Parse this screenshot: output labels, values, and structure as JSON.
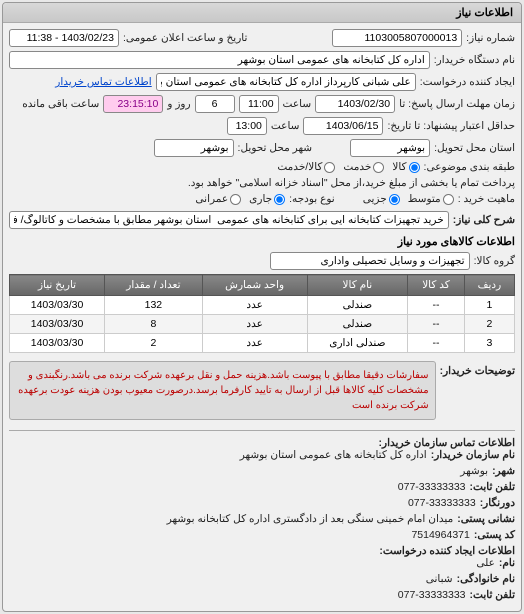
{
  "header": {
    "title": "اطلاعات نیاز"
  },
  "fields": {
    "need_no_label": "شماره نیاز:",
    "need_no": "1103005807000013",
    "datetime_label": "تاریخ و ساعت اعلان عمومی:",
    "datetime": "1403/02/23 - 11:38",
    "buyer_org_label": "نام دستگاه خریدار:",
    "buyer_org": "اداره کل کتابخانه های عمومی استان بوشهر",
    "requester_label": "ایجاد کننده درخواست:",
    "requester": "علی شبانی کارپرداز اداره کل کتابخانه های عمومی استان بوشهر",
    "contact_link": "اطلاعات تماس خریدار",
    "deadline_label": "زمان مهلت ارسال پاسخ: تا",
    "deadline_date": "1403/02/30",
    "deadline_time_label": "ساعت",
    "deadline_time": "11:00",
    "days_label": "روز و",
    "days": "6",
    "remain_time": "23:15:10",
    "remain_label": "ساعت باقی مانده",
    "valid_label": "حداقل اعتبار پیشنهاد: تا تاریخ:",
    "valid_date": "1403/06/15",
    "valid_time_label": "ساعت",
    "valid_time": "13:00",
    "loc_label": "استان محل تحویل:",
    "loc_province": "بوشهر",
    "city_label": "شهر محل تحویل:",
    "loc_city": "بوشهر",
    "budget_label": "طبقه بندی موضوعی:",
    "budget_type_label": "نوع بودجه:",
    "payment_label": "پرداخت تمام یا بخشی از مبلغ خرید،از محل \"اسناد خزانه اسلامی\" خواهد بود.",
    "nature_label": "ماهیت خرید :",
    "textarea_title": "شرح کلی نیاز:",
    "need_desc": "خرید تجهیزات کتابخانه ایی برای کتابخانه های عمومی  استان بوشهر مطابق با مشخصات و کاتالوگ/ فایل پیوست",
    "items_section": "اطلاعات کالاهای مورد نیاز",
    "group_label": "گروه کالا:",
    "group_value": "تجهیزات و وسایل تحصیلی واداری",
    "desc_label": "توضیحات خریدار:",
    "desc_text": "سفارشات دقیقا مطابق با پیوست باشد.هزینه حمل و نقل برعهده شرکت برنده می باشد.رنگبندی و مشخصات کلیه کالاها قبل از ارسال به تایید کارفرما برسد.درصورت معیوب بودن هزینه عودت برعهده شرکت برنده است",
    "footer_title": "اطلاعات تماس سازمان خریدار:",
    "f_org_label": "نام سازمان خریدار:",
    "f_org": "اداره کل کتابخانه های عمومی استان بوشهر",
    "f_city_label": "شهر:",
    "f_city": "بوشهر",
    "f_tel_label": "تلفن ثابت:",
    "f_tel": "077-33333333",
    "f_tel2_label": "دورنگار:",
    "f_tel2": "077-33333333",
    "f_postal_label": "نشانی پستی:",
    "f_postal": "میدان امام خمینی سنگی بعد از دادگستری اداره کل کتابخانه بوشهر",
    "f_zip_label": "کد پستی:",
    "f_zip": "7514964371",
    "f_creator_title": "اطلاعات ایجاد کننده درخواست:",
    "f_name_label": "نام:",
    "f_name": "علی",
    "f_lname_label": "نام خانوادگی:",
    "f_lname": "شبانی",
    "f_phone_label": "تلفن ثابت:",
    "f_phone": "077-33333333"
  },
  "radios": {
    "budget": {
      "opt1": "کالا",
      "opt2": "خدمت",
      "opt3": "کالا/خدمت"
    },
    "budget_type": {
      "opt1": "جاری",
      "opt2": "عمرانی"
    },
    "nature": {
      "opt1": "متوسط",
      "opt2": "جزیی"
    }
  },
  "table": {
    "headers": [
      "ردیف",
      "کد کالا",
      "نام کالا",
      "واحد شمارش",
      "تعداد / مقدار",
      "تاریخ نیاز"
    ],
    "rows": [
      [
        "1",
        "--",
        "صندلی",
        "عدد",
        "132",
        "1403/03/30"
      ],
      [
        "2",
        "--",
        "صندلی",
        "عدد",
        "8",
        "1403/03/30"
      ],
      [
        "3",
        "--",
        "صندلی اداری",
        "عدد",
        "2",
        "1403/03/30"
      ]
    ]
  }
}
